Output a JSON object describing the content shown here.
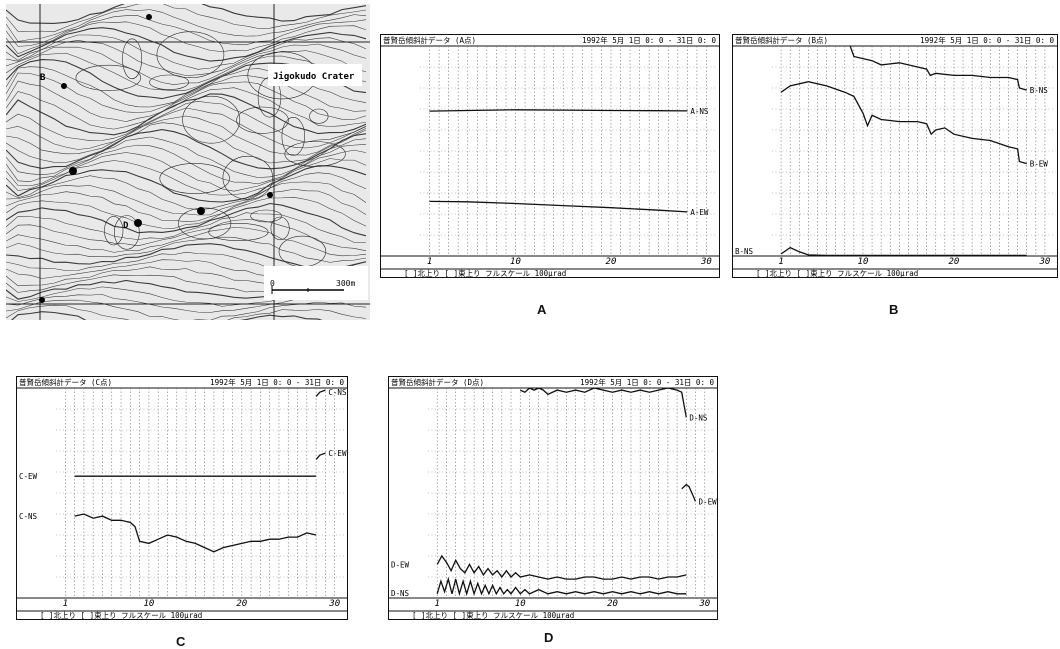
{
  "map": {
    "crater_label": "Jigokudo Crater",
    "scale_start": "0",
    "scale_end": "300m",
    "stations": [
      "B",
      "D"
    ]
  },
  "chart_data": [
    {
      "id": "A",
      "type": "line",
      "panel_label": "A",
      "title": "普賢岳傾斜計データ (A点)",
      "date_range": "1992年 5月 1日   0: 0 - 31日   0: 0",
      "footer": "[ ]北上り [ ]東上り  フルスケール 100μrad",
      "xticks": [
        1,
        10,
        20,
        30
      ],
      "xlim": [
        0,
        31
      ],
      "ylim": [
        0,
        100
      ],
      "series": [
        {
          "name": "A-NS",
          "label_right": "A-NS",
          "x": [
            1,
            5,
            10,
            15,
            20,
            25,
            28
          ],
          "y": [
            69,
            69.3,
            69.6,
            69.5,
            69.3,
            69.2,
            69.1
          ]
        },
        {
          "name": "A-EW",
          "label_right": "A-EW",
          "x": [
            1,
            5,
            10,
            15,
            20,
            25,
            28
          ],
          "y": [
            26,
            25.8,
            25,
            24,
            23,
            21.8,
            21
          ]
        }
      ]
    },
    {
      "id": "B",
      "type": "line",
      "panel_label": "B",
      "title": "普賢岳傾斜計データ (B点)",
      "date_range": "1992年 5月 1日   0: 0 - 31日   0: 0",
      "footer": "[ ]北上り [ ]東上り  フルスケール 100μrad",
      "xticks": [
        1,
        10,
        20,
        30
      ],
      "xlim": [
        0,
        31
      ],
      "ylim": [
        0,
        100
      ],
      "series": [
        {
          "name": "B-NS",
          "label_right": "B-NS",
          "x": [
            6,
            8,
            8.6,
            9,
            11,
            12,
            14,
            16,
            17,
            17.4,
            18,
            20,
            22,
            24,
            26,
            27,
            27.2,
            28
          ],
          "y": [
            104,
            101,
            100,
            95,
            93,
            91,
            92,
            90,
            89,
            86,
            87,
            86,
            86,
            85,
            85,
            84,
            80,
            79
          ]
        },
        {
          "name": "B-EW",
          "label_right": "B-EW",
          "x": [
            1,
            2,
            4,
            6,
            8,
            9,
            10,
            10.5,
            11,
            12,
            14,
            16,
            17,
            17.5,
            18,
            19,
            20,
            22,
            24,
            26,
            27,
            27.2,
            28
          ],
          "y": [
            78,
            81,
            83,
            81,
            78,
            76,
            68,
            62,
            67,
            65,
            64,
            64,
            63,
            58,
            60,
            61,
            58,
            56,
            55,
            52,
            51,
            45,
            44
          ]
        },
        {
          "name": "B-NS",
          "label_left": "B-NS",
          "x": [
            1,
            2,
            3,
            4,
            6,
            8,
            10,
            12,
            14,
            16,
            18,
            20,
            22,
            24,
            26,
            28
          ],
          "y": [
            1,
            4,
            2,
            0.5,
            0.3,
            0.3,
            0.3,
            0.3,
            0.3,
            0.3,
            0.3,
            0.3,
            0.3,
            0.3,
            0.3,
            0.3
          ]
        }
      ]
    },
    {
      "id": "C",
      "type": "line",
      "panel_label": "C",
      "title": "普賢岳傾斜計データ (C点)",
      "date_range": "1992年 5月 1日   0: 0 - 31日   0: 0",
      "footer": "[ ]北上り [ ]東上り  フルスケール 100μrad",
      "xticks": [
        1,
        10,
        20,
        30
      ],
      "xlim": [
        0,
        31
      ],
      "ylim": [
        0,
        100
      ],
      "series": [
        {
          "name": "C-EW",
          "label_left": "C-EW",
          "x": [
            2,
            28
          ],
          "y": [
            58,
            58
          ]
        },
        {
          "name": "C-NS",
          "label_left": "C-NS",
          "x": [
            2,
            3,
            4,
            5,
            6,
            7,
            8,
            8.5,
            9,
            10,
            11,
            12,
            13,
            14,
            15,
            16,
            17,
            18,
            19,
            20,
            21,
            22,
            23,
            24,
            25,
            26,
            27,
            28
          ],
          "y": [
            39,
            40,
            38,
            39,
            37,
            37,
            36,
            34,
            27,
            26,
            28,
            30,
            29,
            27,
            26,
            24,
            22,
            24,
            25,
            26,
            27,
            27,
            28,
            28,
            29,
            29,
            31,
            30
          ]
        },
        {
          "name": "C-NS",
          "label_right": "C-NS",
          "x": [
            28,
            28.4,
            29
          ],
          "y": [
            96,
            98,
            99
          ]
        },
        {
          "name": "C-EW",
          "label_right": "C-EW",
          "x": [
            28,
            28.4,
            29
          ],
          "y": [
            66,
            68,
            69
          ]
        }
      ]
    },
    {
      "id": "D",
      "type": "line",
      "panel_label": "D",
      "title": "普賢岳傾斜計データ (D点)",
      "date_range": "1992年 5月 1日   0: 0 - 31日   0: 0",
      "footer": "[ ]北上り [ ]東上り  フルスケール 100μrad",
      "xticks": [
        1,
        10,
        20,
        30
      ],
      "xlim": [
        0,
        31
      ],
      "ylim": [
        0,
        100
      ],
      "series": [
        {
          "name": "D-NS",
          "label_right": "D-NS",
          "x": [
            10,
            10.5,
            11,
            11.5,
            12,
            12.5,
            13,
            14,
            15,
            16,
            17,
            18,
            19,
            20,
            21,
            22,
            23,
            24,
            25,
            26,
            27,
            27.5,
            28
          ],
          "y": [
            99,
            98,
            100,
            99,
            100,
            99,
            97,
            99,
            98,
            99,
            98,
            100,
            99,
            98,
            99,
            98,
            99,
            98,
            99,
            100,
            99,
            98,
            86
          ]
        },
        {
          "name": "D-EW",
          "label_right": "D-EW",
          "x": [
            27.5,
            28,
            28.3,
            28.6,
            29
          ],
          "y": [
            52,
            54,
            53,
            50,
            46
          ]
        },
        {
          "name": "D-EW",
          "label_left": "D-EW",
          "x": [
            1,
            1.5,
            2,
            2.5,
            3,
            3.5,
            4,
            4.5,
            5,
            5.5,
            6,
            6.5,
            7,
            7.5,
            8,
            8.5,
            9,
            9.5,
            10,
            11,
            12,
            13,
            14,
            15,
            16,
            17,
            18,
            19,
            20,
            21,
            22,
            23,
            24,
            25,
            26,
            27,
            28
          ],
          "y": [
            16,
            20,
            17,
            13,
            18,
            14,
            12,
            16,
            12,
            15,
            11,
            14,
            11,
            13,
            10,
            13,
            10,
            12,
            10,
            11,
            10,
            9,
            10,
            9,
            9,
            10,
            10,
            9,
            9,
            10,
            9,
            10,
            10,
            9,
            10,
            10,
            11
          ]
        },
        {
          "name": "D-NS",
          "label_left": "D-NS",
          "x": [
            1,
            1.4,
            1.8,
            2.2,
            2.6,
            3,
            3.4,
            3.8,
            4.2,
            4.6,
            5,
            5.4,
            5.8,
            6.2,
            6.6,
            7,
            7.4,
            7.8,
            8.2,
            8.6,
            9,
            9.5,
            10,
            10.5,
            11,
            12,
            13,
            14,
            15,
            16,
            17,
            18,
            19,
            20,
            21,
            22,
            23,
            24,
            25,
            26,
            27,
            28
          ],
          "y": [
            2,
            8,
            3,
            9,
            2,
            9,
            2,
            8,
            2,
            8,
            2,
            7,
            2,
            6,
            2,
            6,
            2,
            5,
            2,
            4,
            2,
            5,
            2,
            4,
            2,
            4,
            2,
            3,
            2,
            3,
            2,
            3,
            2,
            3,
            2,
            3,
            2,
            3,
            2,
            3,
            2,
            2
          ]
        }
      ]
    }
  ]
}
